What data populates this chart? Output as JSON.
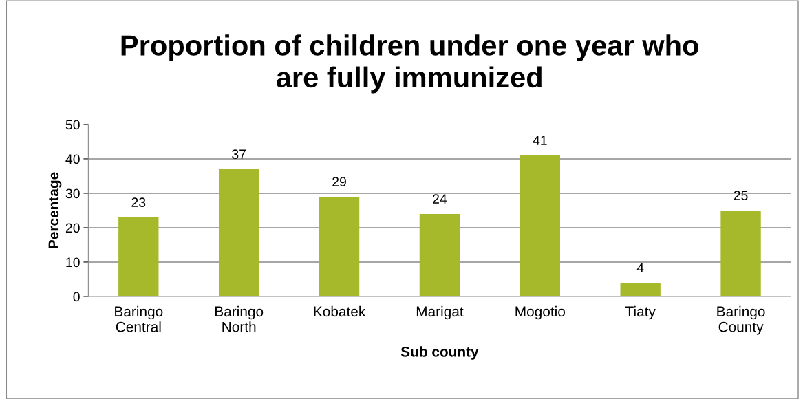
{
  "chart_data": {
    "type": "bar",
    "title": "Proportion of children under one year who\nare fully immunized",
    "xlabel": "Sub county",
    "ylabel": "Percentage",
    "categories": [
      "Baringo\nCentral",
      "Baringo\nNorth",
      "Kobatek",
      "Marigat",
      "Mogotio",
      "Tiaty",
      "Baringo\nCounty"
    ],
    "values": [
      23,
      37,
      29,
      24,
      41,
      4,
      25
    ],
    "color": "#a5b92a",
    "ylim": [
      0,
      50
    ],
    "yticks": [
      0,
      10,
      20,
      30,
      40,
      50
    ],
    "grid": "y",
    "data_labels": true
  }
}
